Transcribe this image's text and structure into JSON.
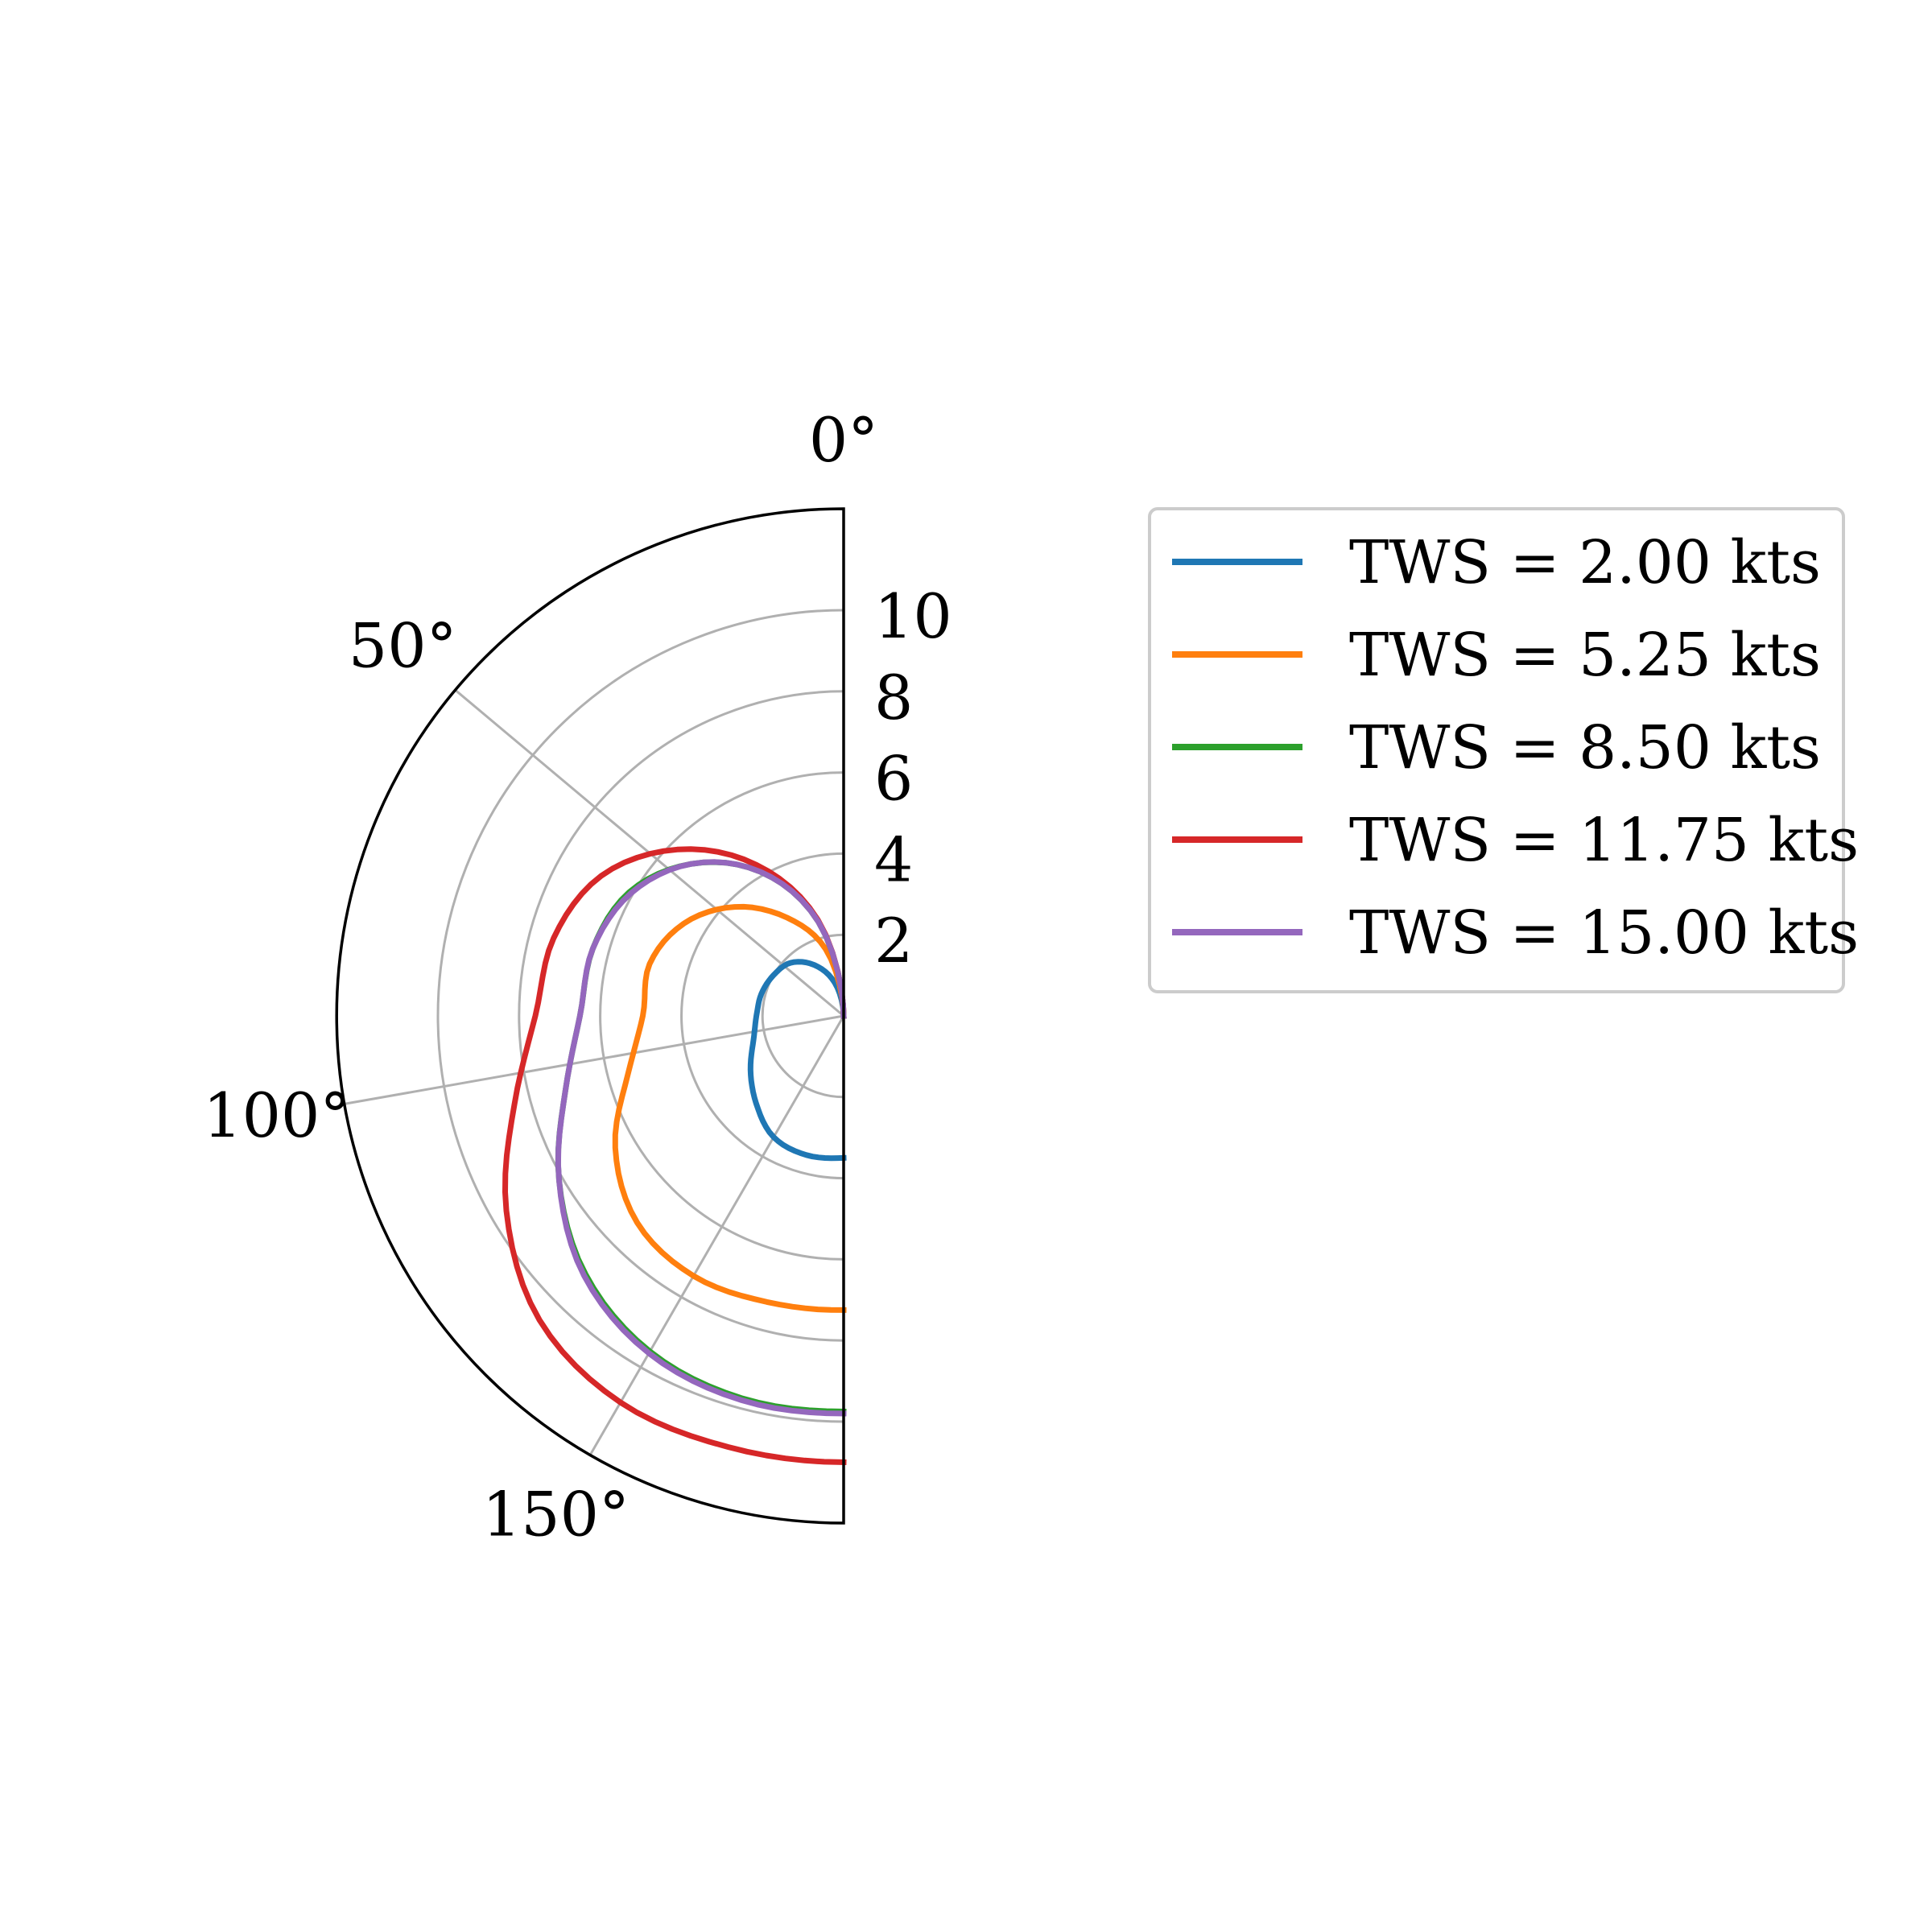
{
  "chart_data": {
    "type": "polar-line",
    "title": "",
    "angle_unit": "degrees",
    "theta_range": [
      0,
      180
    ],
    "r_range": [
      0,
      12.5
    ],
    "r_ticks": [
      {
        "value": 2,
        "label": "2"
      },
      {
        "value": 4,
        "label": "4"
      },
      {
        "value": 6,
        "label": "6"
      },
      {
        "value": 8,
        "label": "8"
      },
      {
        "value": 10,
        "label": "10"
      }
    ],
    "theta_ticks": [
      {
        "value": 0,
        "label": "0°"
      },
      {
        "value": 50,
        "label": "50°"
      },
      {
        "value": 100,
        "label": "100°"
      },
      {
        "value": 150,
        "label": "150°"
      }
    ],
    "grid": true,
    "legend_position": "right",
    "series": [
      {
        "name": "TWS = 2.00 kts",
        "color": "#1f77b4",
        "theta": [
          0,
          15,
          30,
          45,
          60,
          75,
          90,
          105,
          120,
          135,
          150,
          165,
          180
        ],
        "r": [
          0.0,
          0.85,
          1.45,
          1.85,
          2.0,
          2.1,
          2.15,
          2.3,
          2.65,
          3.05,
          3.45,
          3.55,
          3.5
        ]
      },
      {
        "name": "TWS = 5.25 kts",
        "color": "#ff7f0e",
        "theta": [
          0,
          15,
          30,
          45,
          60,
          75,
          90,
          105,
          120,
          135,
          150,
          165,
          180
        ],
        "r": [
          0.0,
          1.7,
          2.8,
          3.8,
          4.55,
          4.95,
          4.95,
          5.5,
          6.5,
          7.2,
          7.4,
          7.3,
          7.25
        ]
      },
      {
        "name": "TWS = 8.50 kts",
        "color": "#2ca02c",
        "theta": [
          0,
          15,
          30,
          45,
          60,
          75,
          90,
          105,
          120,
          135,
          150,
          165,
          180
        ],
        "r": [
          0.0,
          2.4,
          4.1,
          5.3,
          6.1,
          6.4,
          6.5,
          7.1,
          8.1,
          9.0,
          9.55,
          9.75,
          9.75
        ]
      },
      {
        "name": "TWS = 11.75 kts",
        "color": "#d62728",
        "theta": [
          0,
          15,
          30,
          45,
          60,
          75,
          90,
          105,
          120,
          135,
          150,
          165,
          180
        ],
        "r": [
          0.0,
          2.45,
          4.3,
          5.8,
          6.9,
          7.4,
          7.6,
          8.4,
          9.6,
          10.6,
          11.0,
          11.0,
          11.0
        ]
      },
      {
        "name": "TWS = 15.00 kts",
        "color": "#9467bd",
        "theta": [
          0,
          15,
          30,
          45,
          60,
          75,
          90,
          105,
          120,
          135,
          150,
          165,
          180
        ],
        "r": [
          0.0,
          2.4,
          4.1,
          5.3,
          6.05,
          6.4,
          6.5,
          7.1,
          8.1,
          9.05,
          9.6,
          9.8,
          9.8
        ]
      }
    ]
  }
}
